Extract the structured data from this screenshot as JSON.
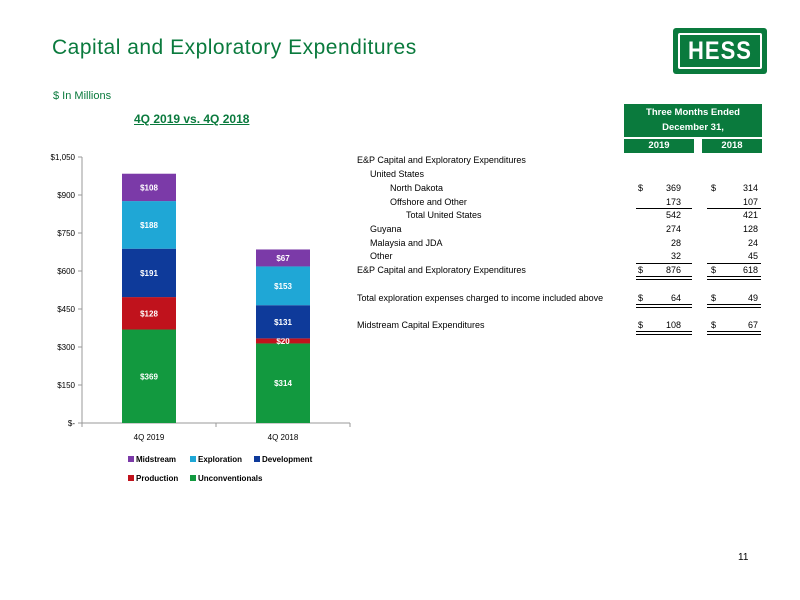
{
  "header": {
    "title": "Capital and Exploratory Expenditures",
    "logo_text": "HESS",
    "units": "$ In Millions",
    "page_number": "11"
  },
  "chart_data": {
    "type": "bar",
    "stacked": true,
    "title": "4Q 2019 vs. 4Q 2018",
    "categories": [
      "4Q 2019",
      "4Q 2018"
    ],
    "ylim": [
      0,
      1050
    ],
    "yticks": [
      0,
      150,
      300,
      450,
      600,
      750,
      900,
      1050
    ],
    "ytick_labels": [
      "$-",
      "$150",
      "$300",
      "$450",
      "$600",
      "$750",
      "$900",
      "$1,050"
    ],
    "series": [
      {
        "name": "Unconventionals",
        "color": "#12993f",
        "values": [
          369,
          314
        ],
        "labels": [
          "$369",
          "$314"
        ]
      },
      {
        "name": "Production",
        "color": "#c0121c",
        "values": [
          128,
          20
        ],
        "labels": [
          "$128",
          "$20"
        ]
      },
      {
        "name": "Development",
        "color": "#0e3a9a",
        "values": [
          191,
          131
        ],
        "labels": [
          "$191",
          "$131"
        ]
      },
      {
        "name": "Exploration",
        "color": "#1fa7d6",
        "values": [
          188,
          153
        ],
        "labels": [
          "$188",
          "$153"
        ]
      },
      {
        "name": "Midstream",
        "color": "#7b3aa8",
        "values": [
          108,
          67
        ],
        "labels": [
          "$108",
          "$67"
        ]
      }
    ],
    "legend_order": [
      "Midstream",
      "Exploration",
      "Development",
      "Production",
      "Unconventionals"
    ],
    "legend_position": "bottom"
  },
  "table": {
    "header_line1": "Three Months Ended",
    "header_line2": "December 31,",
    "col_2019": "2019",
    "col_2018": "2018",
    "rows": [
      {
        "label": "E&P Capital and Exploratory Expenditures",
        "indent": 0,
        "c1": "",
        "v1": "",
        "c2": "",
        "v2": ""
      },
      {
        "label": "United States",
        "indent": 1,
        "c1": "",
        "v1": "",
        "c2": "",
        "v2": ""
      },
      {
        "label": "North Dakota",
        "indent": 2,
        "c1": "$",
        "v1": "369",
        "c2": "$",
        "v2": "314"
      },
      {
        "label": "Offshore and Other",
        "indent": 2,
        "c1": "",
        "v1": "173",
        "c2": "",
        "v2": "107"
      },
      {
        "label": "Total United States",
        "indent": 3,
        "c1": "",
        "v1": "542",
        "c2": "",
        "v2": "421"
      },
      {
        "label": "Guyana",
        "indent": 1,
        "c1": "",
        "v1": "274",
        "c2": "",
        "v2": "128"
      },
      {
        "label": "Malaysia and JDA",
        "indent": 1,
        "c1": "",
        "v1": "28",
        "c2": "",
        "v2": "24"
      },
      {
        "label": "Other",
        "indent": 1,
        "c1": "",
        "v1": "32",
        "c2": "",
        "v2": "45"
      },
      {
        "label": "E&P Capital and Exploratory Expenditures",
        "indent": 0,
        "c1": "$",
        "v1": "876",
        "c2": "$",
        "v2": "618"
      },
      {
        "label": "Total exploration expenses charged to income included above",
        "indent": 0,
        "c1": "$",
        "v1": "64",
        "c2": "$",
        "v2": "49"
      },
      {
        "label": "Midstream Capital Expenditures",
        "indent": 0,
        "c1": "$",
        "v1": "108",
        "c2": "$",
        "v2": "67"
      }
    ]
  }
}
